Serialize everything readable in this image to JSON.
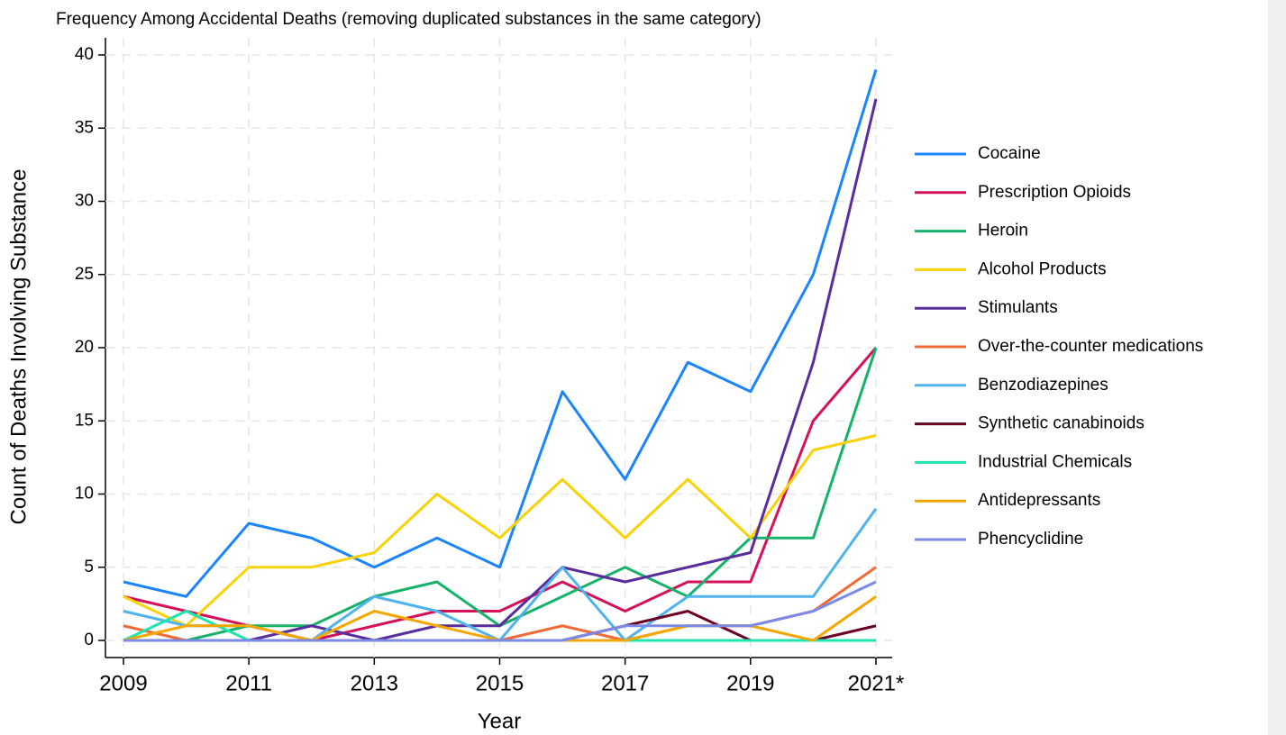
{
  "chart_data": {
    "type": "line",
    "title": "Frequency Among Accidental Deaths (removing duplicated substances in the same category)",
    "xlabel": "Year",
    "ylabel": "Count of Deaths Involving Substance",
    "x": [
      2009,
      2010,
      2011,
      2012,
      2013,
      2014,
      2015,
      2016,
      2017,
      2018,
      2019,
      2020,
      2021
    ],
    "xlim": [
      2009,
      2021
    ],
    "xticks": [
      2009,
      2011,
      2013,
      2015,
      2017,
      2019,
      {
        "value": 2021,
        "label": "2021*"
      }
    ],
    "ylim": [
      0,
      40
    ],
    "yticks": [
      0,
      5,
      10,
      15,
      20,
      25,
      30,
      35,
      40
    ],
    "grid": true,
    "legend": "right",
    "series": [
      {
        "name": "Cocaine",
        "color": "#1a85ff",
        "values": [
          4,
          3,
          8,
          7,
          5,
          7,
          5,
          17,
          11,
          19,
          17,
          25,
          39
        ]
      },
      {
        "name": "Prescription Opioids",
        "color": "#d41159",
        "values": [
          3,
          2,
          1,
          0,
          1,
          2,
          2,
          4,
          2,
          4,
          4,
          15,
          20
        ]
      },
      {
        "name": "Heroin",
        "color": "#17b26a",
        "values": [
          0,
          0,
          1,
          1,
          3,
          4,
          1,
          3,
          5,
          3,
          7,
          7,
          20
        ]
      },
      {
        "name": "Alcohol Products",
        "color": "#fad20a",
        "values": [
          3,
          1,
          5,
          5,
          6,
          10,
          7,
          11,
          7,
          11,
          7,
          13,
          14
        ]
      },
      {
        "name": "Stimulants",
        "color": "#5a2d9c",
        "values": [
          0,
          0,
          0,
          1,
          0,
          1,
          1,
          5,
          4,
          5,
          6,
          19,
          37
        ]
      },
      {
        "name": "Over-the-counter medications",
        "color": "#f46a36",
        "values": [
          1,
          0,
          0,
          0,
          0,
          0,
          0,
          1,
          0,
          1,
          1,
          2,
          5
        ]
      },
      {
        "name": "Benzodiazepines",
        "color": "#4fb3f0",
        "values": [
          2,
          1,
          1,
          0,
          3,
          2,
          0,
          5,
          0,
          3,
          3,
          3,
          9
        ]
      },
      {
        "name": "Synthetic canabinoids",
        "color": "#6b0020",
        "values": [
          0,
          0,
          0,
          0,
          0,
          0,
          0,
          0,
          1,
          2,
          0,
          0,
          1
        ]
      },
      {
        "name": "Industrial Chemicals",
        "color": "#1de5b0",
        "values": [
          0,
          2,
          0,
          0,
          0,
          0,
          0,
          0,
          0,
          0,
          0,
          0,
          0
        ]
      },
      {
        "name": "Antidepressants",
        "color": "#f5a700",
        "values": [
          0,
          1,
          1,
          0,
          2,
          1,
          0,
          0,
          0,
          1,
          1,
          0,
          3
        ]
      },
      {
        "name": "Phencyclidine",
        "color": "#7b8ae6",
        "values": [
          0,
          0,
          0,
          0,
          0,
          0,
          0,
          0,
          1,
          1,
          1,
          2,
          4
        ]
      }
    ]
  }
}
